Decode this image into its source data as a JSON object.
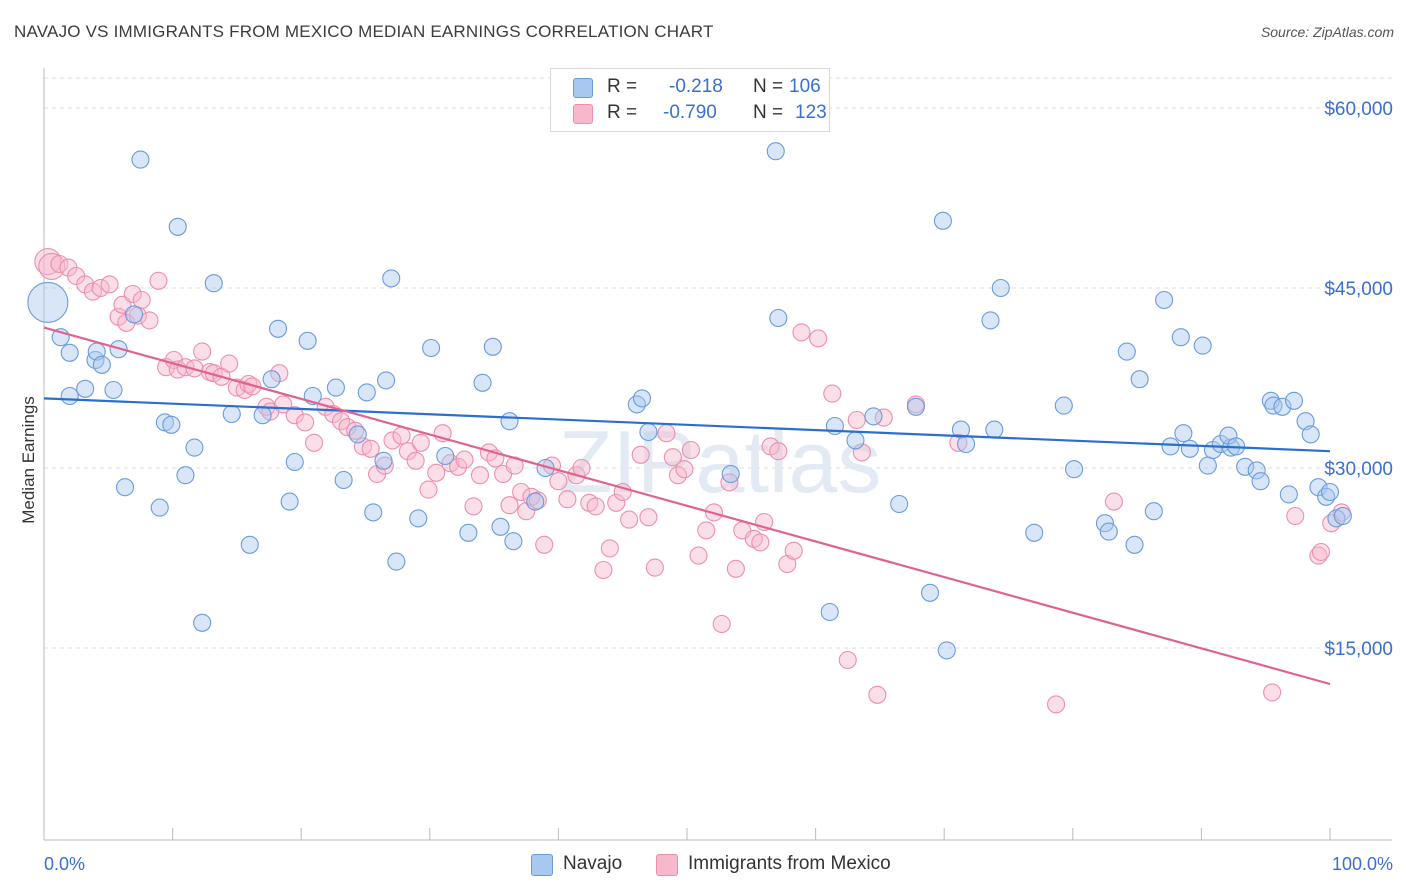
{
  "header": {
    "title": "NAVAJO VS IMMIGRANTS FROM MEXICO MEDIAN EARNINGS CORRELATION CHART",
    "source": "Source: ZipAtlas.com"
  },
  "legend": {
    "rows": [
      {
        "r_label": "R =",
        "r_value": "-0.218",
        "n_label": "N =",
        "n_value": "106"
      },
      {
        "r_label": "R =",
        "r_value": "-0.790",
        "n_label": "N =",
        "n_value": "123"
      }
    ],
    "bottom": [
      "Navajo",
      "Immigrants from Mexico"
    ]
  },
  "colors": {
    "navajo_fill": "#a9c8f0",
    "navajo_stroke": "#6a9bdc",
    "navajo_line": "#2a6fd0",
    "mexico_fill": "#f7b8cc",
    "mexico_stroke": "#ec8fad",
    "mexico_line": "#e0628e",
    "axis_label": "#3a6fd1",
    "grid": "#dddddd"
  },
  "chart_data": {
    "type": "scatter",
    "title": "NAVAJO VS IMMIGRANTS FROM MEXICO MEDIAN EARNINGS CORRELATION CHART",
    "xlabel": "",
    "ylabel": "Median Earnings",
    "x_tick_labels": [
      "0.0%",
      "100.0%"
    ],
    "y_tick_labels": [
      "$15,000",
      "$30,000",
      "$45,000",
      "$60,000"
    ],
    "y_ticks": [
      15000,
      30000,
      45000,
      60000
    ],
    "xlim": [
      0,
      100
    ],
    "ylim": [
      0,
      62500
    ],
    "watermark": "ZIPatlas",
    "series": [
      {
        "name": "Navajo",
        "r": -0.218,
        "n": 106,
        "trend": {
          "x": [
            0,
            100
          ],
          "y": [
            35800,
            31400
          ]
        },
        "points": [
          [
            0.3,
            43800
          ],
          [
            2,
            39600
          ],
          [
            4,
            39000
          ],
          [
            3.2,
            36600
          ],
          [
            4.1,
            39700
          ],
          [
            1.3,
            40900
          ],
          [
            2,
            36000
          ],
          [
            4.5,
            38600
          ],
          [
            5.4,
            36500
          ],
          [
            5.8,
            39900
          ],
          [
            6.3,
            28400
          ],
          [
            7,
            42800
          ],
          [
            7.5,
            55700
          ],
          [
            9,
            26700
          ],
          [
            9.4,
            33800
          ],
          [
            10.4,
            50100
          ],
          [
            9.9,
            33600
          ],
          [
            11,
            29400
          ],
          [
            11.7,
            31700
          ],
          [
            12.3,
            17100
          ],
          [
            13.2,
            45400
          ],
          [
            14.6,
            34500
          ],
          [
            16,
            23600
          ],
          [
            17,
            34400
          ],
          [
            17.7,
            37400
          ],
          [
            18.2,
            41600
          ],
          [
            19.1,
            27200
          ],
          [
            19.5,
            30500
          ],
          [
            20.5,
            40600
          ],
          [
            20.9,
            36000
          ],
          [
            22.7,
            36700
          ],
          [
            23.3,
            29000
          ],
          [
            24.4,
            32800
          ],
          [
            25.1,
            36300
          ],
          [
            25.6,
            26300
          ],
          [
            26.6,
            37300
          ],
          [
            26.4,
            30600
          ],
          [
            27,
            45800
          ],
          [
            27.4,
            22200
          ],
          [
            29.1,
            25800
          ],
          [
            30.1,
            40000
          ],
          [
            31.2,
            31000
          ],
          [
            33,
            24600
          ],
          [
            34.1,
            37100
          ],
          [
            34.9,
            40100
          ],
          [
            35.5,
            25100
          ],
          [
            36.2,
            33900
          ],
          [
            36.5,
            23900
          ],
          [
            38.2,
            27200
          ],
          [
            39,
            30000
          ],
          [
            46.1,
            35300
          ],
          [
            46.5,
            35800
          ],
          [
            47,
            33000
          ],
          [
            53.4,
            29500
          ],
          [
            56.9,
            56400
          ],
          [
            57.1,
            42500
          ],
          [
            61.1,
            18000
          ],
          [
            61.5,
            33500
          ],
          [
            63.1,
            32300
          ],
          [
            64.5,
            34300
          ],
          [
            66.5,
            27000
          ],
          [
            67.8,
            35100
          ],
          [
            68.9,
            19600
          ],
          [
            69.9,
            50600
          ],
          [
            70.2,
            14800
          ],
          [
            71.3,
            33200
          ],
          [
            71.7,
            32000
          ],
          [
            73.6,
            42300
          ],
          [
            73.9,
            33200
          ],
          [
            74.4,
            45000
          ],
          [
            77,
            24600
          ],
          [
            79.3,
            35200
          ],
          [
            80.1,
            29900
          ],
          [
            82.5,
            25400
          ],
          [
            82.8,
            24700
          ],
          [
            84.2,
            39700
          ],
          [
            84.8,
            23600
          ],
          [
            85.2,
            37400
          ],
          [
            86.3,
            26400
          ],
          [
            87.1,
            44000
          ],
          [
            87.6,
            31800
          ],
          [
            88.4,
            40900
          ],
          [
            88.6,
            32900
          ],
          [
            89.1,
            31600
          ],
          [
            90.1,
            40200
          ],
          [
            90.5,
            30200
          ],
          [
            90.9,
            31500
          ],
          [
            91.5,
            32000
          ],
          [
            92.3,
            31700
          ],
          [
            92.1,
            32700
          ],
          [
            92.7,
            31800
          ],
          [
            93.4,
            30100
          ],
          [
            94.3,
            29800
          ],
          [
            94.6,
            28900
          ],
          [
            95.4,
            35600
          ],
          [
            95.6,
            35200
          ],
          [
            96.3,
            35100
          ],
          [
            96.8,
            27800
          ],
          [
            97.2,
            35600
          ],
          [
            98.1,
            33900
          ],
          [
            98.5,
            32800
          ],
          [
            99.1,
            28400
          ],
          [
            99.7,
            27600
          ],
          [
            100,
            28000
          ],
          [
            100.5,
            25800
          ],
          [
            101,
            26000
          ]
        ]
      },
      {
        "name": "Immigrants from Mexico",
        "r": -0.79,
        "n": 123,
        "trend": {
          "x": [
            0,
            100
          ],
          "y": [
            41700,
            12000
          ]
        },
        "points": [
          [
            0.3,
            47200
          ],
          [
            0.6,
            46800
          ],
          [
            1.2,
            47000
          ],
          [
            1.9,
            46700
          ],
          [
            2.5,
            46000
          ],
          [
            3.2,
            45300
          ],
          [
            3.8,
            44700
          ],
          [
            4.4,
            45000
          ],
          [
            5.1,
            45300
          ],
          [
            5.8,
            42600
          ],
          [
            6.4,
            42100
          ],
          [
            6.1,
            43600
          ],
          [
            6.9,
            44500
          ],
          [
            7.3,
            42700
          ],
          [
            7.6,
            44000
          ],
          [
            8.2,
            42300
          ],
          [
            8.9,
            45600
          ],
          [
            9.5,
            38400
          ],
          [
            10.1,
            39000
          ],
          [
            10.4,
            38200
          ],
          [
            11,
            38400
          ],
          [
            11.7,
            38300
          ],
          [
            12.3,
            39700
          ],
          [
            12.9,
            38000
          ],
          [
            13.2,
            37900
          ],
          [
            13.8,
            37600
          ],
          [
            14.4,
            38700
          ],
          [
            15,
            36700
          ],
          [
            15.6,
            36500
          ],
          [
            15.9,
            37000
          ],
          [
            16.2,
            36800
          ],
          [
            17.3,
            35100
          ],
          [
            17.6,
            34700
          ],
          [
            18.3,
            37900
          ],
          [
            18.6,
            35300
          ],
          [
            19.5,
            34400
          ],
          [
            20.3,
            33800
          ],
          [
            21,
            32100
          ],
          [
            21.9,
            35100
          ],
          [
            22.5,
            34500
          ],
          [
            23.1,
            33900
          ],
          [
            23.6,
            33400
          ],
          [
            24.2,
            33100
          ],
          [
            24.8,
            31800
          ],
          [
            25.4,
            31600
          ],
          [
            25.9,
            29500
          ],
          [
            26.5,
            30200
          ],
          [
            27.1,
            32300
          ],
          [
            27.8,
            32700
          ],
          [
            28.3,
            31400
          ],
          [
            28.9,
            30600
          ],
          [
            29.3,
            32100
          ],
          [
            29.9,
            28200
          ],
          [
            30.5,
            29600
          ],
          [
            31,
            32900
          ],
          [
            31.6,
            30400
          ],
          [
            32.2,
            30100
          ],
          [
            32.7,
            30700
          ],
          [
            33.4,
            26800
          ],
          [
            33.9,
            29400
          ],
          [
            34.6,
            31300
          ],
          [
            35.1,
            30800
          ],
          [
            35.7,
            29500
          ],
          [
            36.2,
            26900
          ],
          [
            36.6,
            30200
          ],
          [
            37.1,
            28000
          ],
          [
            37.5,
            26400
          ],
          [
            37.9,
            27600
          ],
          [
            38.4,
            27300
          ],
          [
            38.9,
            23600
          ],
          [
            39.5,
            30200
          ],
          [
            40,
            28900
          ],
          [
            40.7,
            27400
          ],
          [
            41.4,
            29400
          ],
          [
            41.8,
            30000
          ],
          [
            42.4,
            27100
          ],
          [
            42.9,
            26800
          ],
          [
            43.5,
            21500
          ],
          [
            44,
            23300
          ],
          [
            44.5,
            27100
          ],
          [
            45,
            28000
          ],
          [
            45.5,
            25700
          ],
          [
            46.4,
            31100
          ],
          [
            47,
            25900
          ],
          [
            47.5,
            21700
          ],
          [
            48.4,
            32900
          ],
          [
            48.9,
            30900
          ],
          [
            49.3,
            29400
          ],
          [
            49.8,
            29900
          ],
          [
            50.3,
            31500
          ],
          [
            50.9,
            22700
          ],
          [
            51.5,
            24800
          ],
          [
            52.1,
            26300
          ],
          [
            52.7,
            17000
          ],
          [
            53.3,
            28800
          ],
          [
            53.8,
            21600
          ],
          [
            54.3,
            24800
          ],
          [
            55.2,
            24100
          ],
          [
            55.7,
            23800
          ],
          [
            56,
            25500
          ],
          [
            56.5,
            31800
          ],
          [
            57.1,
            31400
          ],
          [
            57.8,
            22000
          ],
          [
            58.3,
            23100
          ],
          [
            58.9,
            41300
          ],
          [
            60.2,
            40800
          ],
          [
            61.3,
            36200
          ],
          [
            62.5,
            14000
          ],
          [
            63.6,
            31300
          ],
          [
            63.2,
            34000
          ],
          [
            64.8,
            11100
          ],
          [
            65.3,
            34200
          ],
          [
            67.8,
            35300
          ],
          [
            71.1,
            32100
          ],
          [
            78.7,
            10300
          ],
          [
            83.2,
            27200
          ],
          [
            95.5,
            11300
          ],
          [
            99.1,
            22700
          ],
          [
            97.3,
            26000
          ],
          [
            99.3,
            23000
          ],
          [
            100.1,
            25400
          ],
          [
            100.9,
            26300
          ]
        ]
      }
    ]
  }
}
